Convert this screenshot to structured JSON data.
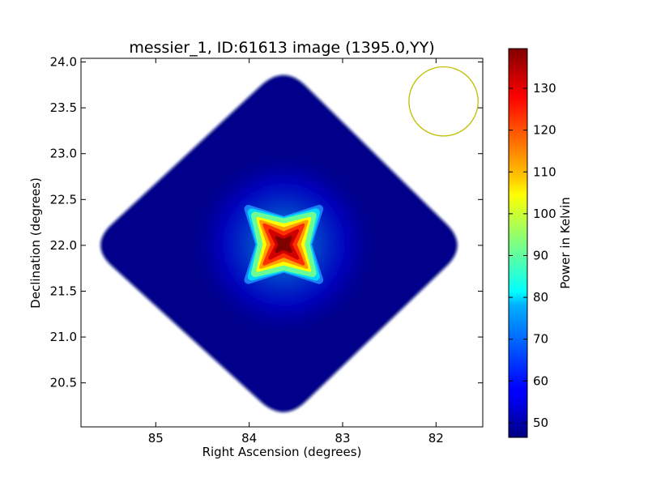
{
  "chart_data": {
    "type": "heatmap",
    "title": "messier_1, ID:61613 image (1395.0,YY)",
    "xlabel": "Right Ascension (degrees)",
    "ylabel": "Declination (degrees)",
    "xlim": [
      85.8,
      81.5
    ],
    "ylim": [
      20.02,
      24.04
    ],
    "xticks": [
      85,
      84,
      83,
      82
    ],
    "xtick_labels": [
      "85",
      "84",
      "83",
      "82"
    ],
    "yticks": [
      20.5,
      21.0,
      21.5,
      22.0,
      22.5,
      23.0,
      23.5,
      24.0
    ],
    "ytick_labels": [
      "20.5",
      "21.0",
      "21.5",
      "22.0",
      "22.5",
      "23.0",
      "23.5",
      "24.0"
    ],
    "colorbar": {
      "label": "Power in Kelvin",
      "min": 46.5,
      "max": 139.5,
      "ticks": [
        50,
        60,
        70,
        80,
        90,
        100,
        110,
        120,
        130
      ],
      "tick_labels": [
        "50",
        "60",
        "70",
        "80",
        "90",
        "100",
        "110",
        "120",
        "130"
      ],
      "colormap": "jet"
    },
    "source": {
      "ra": 83.63,
      "dec": 22.01,
      "peak_kelvin": 139.5,
      "background_kelvin": 47
    },
    "footprint": {
      "shape": "diamond",
      "center_ra": 83.63,
      "center_dec": 22.0,
      "vertices": [
        {
          "ra": 83.63,
          "dec": 23.98
        },
        {
          "ra": 81.65,
          "dec": 22.0
        },
        {
          "ra": 83.63,
          "dec": 20.06
        },
        {
          "ra": 85.72,
          "dec": 22.0
        }
      ]
    },
    "beam": {
      "shape": "circle",
      "center_ra": 81.92,
      "center_dec": 23.57,
      "radius_ra": 0.37,
      "color": "#bfbf00"
    },
    "grid": false
  }
}
